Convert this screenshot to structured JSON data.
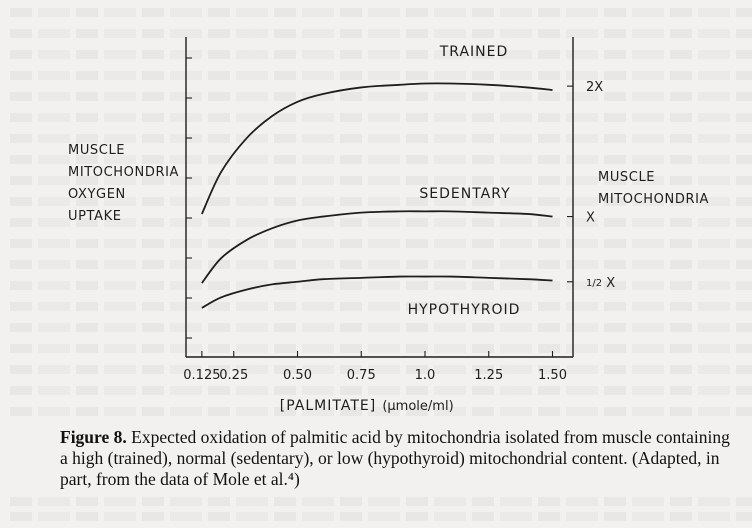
{
  "chart_data": {
    "type": "line",
    "title": "",
    "xlabel": "[PALMITATE]",
    "xlabel_unit": "(μmole/ml)",
    "ylabel_left": [
      "MUSCLE",
      "MITOCHONDRIA",
      "OXYGEN",
      "UPTAKE"
    ],
    "ylabel_right": [
      "MUSCLE",
      "MITOCHONDRIA"
    ],
    "x_ticks": [
      "0.125",
      "0.25",
      "0.50",
      "0.75",
      "1.0",
      "1.25",
      "1.50"
    ],
    "x_tick_values": [
      0.125,
      0.25,
      0.5,
      0.75,
      1.0,
      1.25,
      1.5
    ],
    "right_ticks": [
      "2X",
      "X",
      "1/2 X"
    ],
    "right_tick_values": [
      2.0,
      1.0,
      0.5
    ],
    "xlim": [
      0.0,
      1.6
    ],
    "ylim": [
      0.0,
      2.3
    ],
    "grid": false,
    "series": [
      {
        "name": "TRAINED",
        "x": [
          0.125,
          0.2,
          0.3,
          0.4,
          0.5,
          0.6,
          0.75,
          0.9,
          1.0,
          1.1,
          1.25,
          1.4,
          1.5
        ],
        "values": [
          1.02,
          1.34,
          1.6,
          1.77,
          1.88,
          1.94,
          1.99,
          2.01,
          2.02,
          2.02,
          2.01,
          1.99,
          1.97
        ]
      },
      {
        "name": "SEDENTARY",
        "x": [
          0.125,
          0.2,
          0.3,
          0.4,
          0.5,
          0.6,
          0.75,
          0.9,
          1.0,
          1.1,
          1.25,
          1.4,
          1.5
        ],
        "values": [
          0.49,
          0.68,
          0.82,
          0.91,
          0.97,
          1.0,
          1.03,
          1.04,
          1.04,
          1.04,
          1.03,
          1.02,
          1.0
        ]
      },
      {
        "name": "HYPOTHYROID",
        "x": [
          0.125,
          0.2,
          0.3,
          0.4,
          0.5,
          0.6,
          0.75,
          0.9,
          1.0,
          1.1,
          1.25,
          1.4,
          1.5
        ],
        "values": [
          0.3,
          0.38,
          0.44,
          0.48,
          0.5,
          0.52,
          0.53,
          0.54,
          0.54,
          0.54,
          0.53,
          0.52,
          0.51
        ]
      }
    ]
  },
  "caption": {
    "figure_label": "Figure 8.",
    "text": "Expected oxidation of palmitic acid by mitochondria isolated from muscle containing a high (trained), normal (sedentary), or low (hypothyroid) mitochondrial content. (Adapted, in part, from the data of Mole et al.⁴)"
  }
}
